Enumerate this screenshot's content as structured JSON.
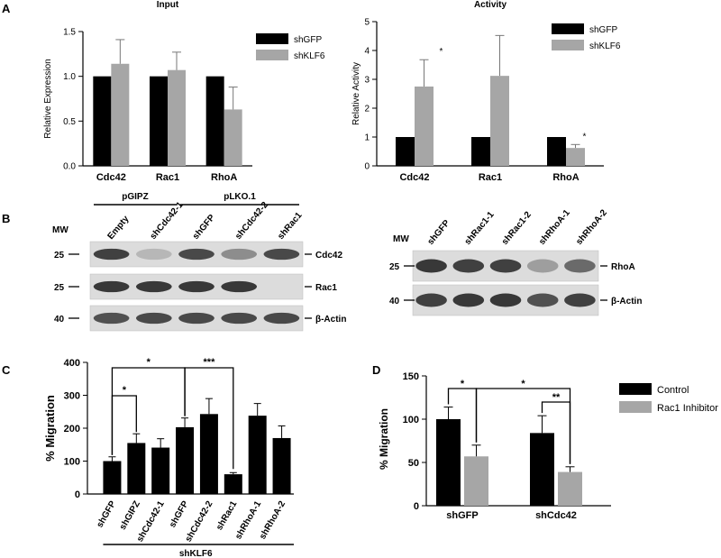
{
  "panel_letters": {
    "a": "A",
    "b": "B",
    "c": "C",
    "d": "D"
  },
  "chart_data": [
    {
      "id": "A1",
      "type": "bar",
      "title": "Input",
      "ylabel": "Relative Expression",
      "categories": [
        "Cdc42",
        "Rac1",
        "RhoA"
      ],
      "series": [
        {
          "name": "shGFP",
          "values": [
            1.0,
            1.0,
            1.0
          ],
          "errors": [
            0,
            0,
            0
          ]
        },
        {
          "name": "shKLF6",
          "values": [
            1.14,
            1.07,
            0.63
          ],
          "errors": [
            0.27,
            0.2,
            0.25
          ]
        }
      ],
      "ylim": [
        0,
        1.5
      ],
      "yticks": [
        "0.0",
        "0.5",
        "1.0",
        "1.5"
      ],
      "annotations": []
    },
    {
      "id": "A2",
      "type": "bar",
      "title": "Activity",
      "ylabel": "Relative Activity",
      "categories": [
        "Cdc42",
        "Rac1",
        "RhoA"
      ],
      "series": [
        {
          "name": "shGFP",
          "values": [
            1.0,
            1.0,
            1.0
          ],
          "errors": [
            0,
            0,
            0
          ]
        },
        {
          "name": "shKLF6",
          "values": [
            2.75,
            3.12,
            0.62
          ],
          "errors": [
            0.93,
            1.4,
            0.12
          ]
        }
      ],
      "ylim": [
        0,
        5
      ],
      "yticks": [
        "0",
        "1",
        "2",
        "3",
        "4",
        "5"
      ],
      "annotations": [
        "*",
        "*"
      ]
    },
    {
      "id": "C",
      "type": "bar",
      "title": "",
      "ylabel": "% Migration",
      "categories": [
        "shGFP",
        "shGIPZ",
        "shCdc42-1",
        "shGFP",
        "shCdc42-2",
        "shRac1",
        "shRhoA-1",
        "shRhoA-2"
      ],
      "values": [
        100,
        155,
        141,
        203,
        243,
        60,
        238,
        170
      ],
      "errors": [
        13,
        28,
        27,
        28,
        47,
        5,
        37,
        37
      ],
      "ylim": [
        0,
        400
      ],
      "yticks": [
        "0",
        "100",
        "200",
        "300",
        "400"
      ],
      "group_label": "shKLF6",
      "annotations": [
        "*",
        "*",
        "***"
      ]
    },
    {
      "id": "D",
      "type": "bar",
      "title": "",
      "ylabel": "% Migration",
      "categories": [
        "shGFP",
        "shCdc42"
      ],
      "series": [
        {
          "name": "Control",
          "values": [
            100,
            84
          ],
          "errors": [
            14,
            20
          ]
        },
        {
          "name": "Rac1 Inhibitor",
          "values": [
            57,
            39
          ],
          "errors": [
            13,
            6
          ]
        }
      ],
      "ylim": [
        0,
        150
      ],
      "yticks": [
        "0",
        "50",
        "100",
        "150"
      ],
      "annotations": [
        "*",
        "*",
        "**"
      ]
    }
  ],
  "blot_left": {
    "mw_label": "MW",
    "group1": "pGIPZ",
    "group2": "pLKO.1",
    "lanes": [
      "Empty",
      "shCdc42-1",
      "shGFP",
      "shCdc42-2",
      "shRac1"
    ],
    "rows": [
      {
        "mw": "25",
        "label": "Cdc42",
        "bands": [
          0.8,
          0.1,
          0.75,
          0.35,
          0.75
        ]
      },
      {
        "mw": "25",
        "label": "Rac1",
        "bands": [
          0.85,
          0.85,
          0.85,
          0.85,
          0.0
        ]
      },
      {
        "mw": "40",
        "label": "β-Actin",
        "bands": [
          0.7,
          0.75,
          0.75,
          0.75,
          0.75
        ]
      }
    ]
  },
  "blot_right": {
    "mw_label": "MW",
    "lanes": [
      "shGFP",
      "shRac1-1",
      "shRac1-2",
      "shRhoA-1",
      "shRhoA-2"
    ],
    "rows": [
      {
        "mw": "25",
        "label": "RhoA",
        "bands": [
          0.85,
          0.8,
          0.8,
          0.25,
          0.55
        ]
      },
      {
        "mw": "40",
        "label": "β-Actin",
        "bands": [
          0.8,
          0.85,
          0.85,
          0.7,
          0.8
        ]
      }
    ]
  }
}
